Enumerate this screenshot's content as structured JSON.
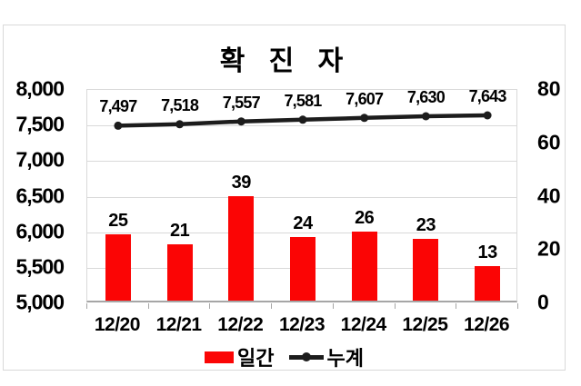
{
  "colors": {
    "bar": "#fb0505",
    "line": "#1c1c1c",
    "grid": "#d9d9d9",
    "axis": "#a6a6a6",
    "text": "#000000",
    "frame_border": "#d9d9d9",
    "background": "#ffffff"
  },
  "chart_data": {
    "type": "combo-bar-line",
    "title": "확 진 자",
    "categories": [
      "12/20",
      "12/21",
      "12/22",
      "12/23",
      "12/24",
      "12/25",
      "12/26"
    ],
    "series": [
      {
        "name": "일간",
        "type": "bar",
        "axis": "right",
        "color": "#fb0505",
        "values": [
          25,
          21,
          39,
          24,
          26,
          23,
          13
        ],
        "labels": [
          "25",
          "21",
          "39",
          "24",
          "26",
          "23",
          "13"
        ]
      },
      {
        "name": "누계",
        "type": "line",
        "axis": "left",
        "color": "#1c1c1c",
        "values": [
          7497,
          7518,
          7557,
          7581,
          7607,
          7630,
          7643
        ],
        "labels": [
          "7,497",
          "7,518",
          "7,557",
          "7,581",
          "7,607",
          "7,630",
          "7,643"
        ]
      }
    ],
    "left_axis": {
      "min": 5000,
      "max": 8000,
      "step": 500,
      "ticks": [
        "8,000",
        "7,500",
        "7,000",
        "6,500",
        "6,000",
        "5,500",
        "5,000"
      ]
    },
    "right_axis": {
      "min": 0,
      "max": 80,
      "step": 20,
      "ticks": [
        "80",
        "60",
        "40",
        "20",
        "0"
      ]
    },
    "grid": true,
    "legend_position": "bottom"
  }
}
